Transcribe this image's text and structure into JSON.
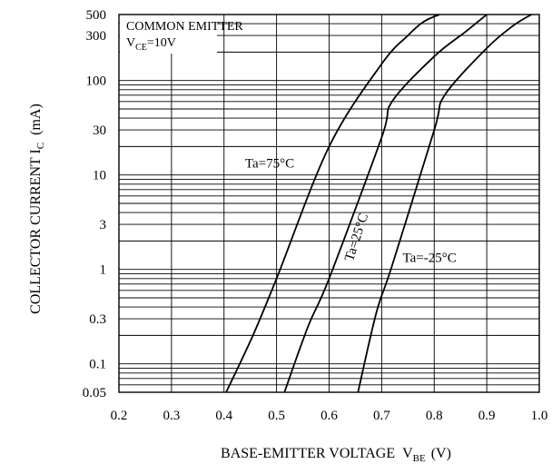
{
  "chart_data": {
    "type": "line",
    "xlabel": "BASE-EMITTER VOLTAGE",
    "xlabel_symbol": "V",
    "xlabel_sub": "BE",
    "xlabel_unit": "(V)",
    "ylabel": "COLLECTOR CURRENT I",
    "ylabel_sub": "C",
    "ylabel_unit": "(mA)",
    "xlim": [
      0.2,
      1.0
    ],
    "ylim": [
      0.05,
      500
    ],
    "y_scale": "log",
    "grid": true,
    "x_ticks": [
      "0.2",
      "0.3",
      "0.4",
      "0.5",
      "0.6",
      "0.7",
      "0.8",
      "0.9",
      "1.0"
    ],
    "x_tick_values": [
      0.2,
      0.3,
      0.4,
      0.5,
      0.6,
      0.7,
      0.8,
      0.9,
      1.0
    ],
    "y_ticks": [
      "0.05",
      "0.1",
      "0.3",
      "1",
      "3",
      "10",
      "30",
      "100",
      "300",
      "500"
    ],
    "y_tick_values": [
      0.05,
      0.1,
      0.3,
      1,
      3,
      10,
      30,
      100,
      300,
      500
    ],
    "annotation": {
      "line1": "COMMON EMITTER",
      "line2_symbol": "V",
      "line2_sub": "CE",
      "line2_rest": "=10V"
    },
    "series": [
      {
        "name": "Ta=75°C",
        "x": [
          0.404,
          0.455,
          0.5,
          0.6,
          0.7,
          0.75,
          0.78,
          0.81
        ],
        "y": [
          0.05,
          0.2,
          0.8,
          20,
          150,
          300,
          420,
          500
        ],
        "label_x": 0.44,
        "label_y": 12
      },
      {
        "name": "Ta=25°C",
        "x": [
          0.515,
          0.56,
          0.6,
          0.7,
          0.72,
          0.8,
          0.86,
          0.9
        ],
        "y": [
          0.05,
          0.25,
          0.8,
          25,
          60,
          180,
          330,
          500
        ],
        "label_x": 0.645,
        "label_y": 1.2
      },
      {
        "name": "Ta=-25°C",
        "x": [
          0.655,
          0.69,
          0.72,
          0.8,
          0.82,
          0.9,
          0.95,
          0.985
        ],
        "y": [
          0.05,
          0.35,
          1.1,
          30,
          70,
          220,
          380,
          500
        ],
        "label_x": 0.74,
        "label_y": 1.2
      }
    ]
  }
}
